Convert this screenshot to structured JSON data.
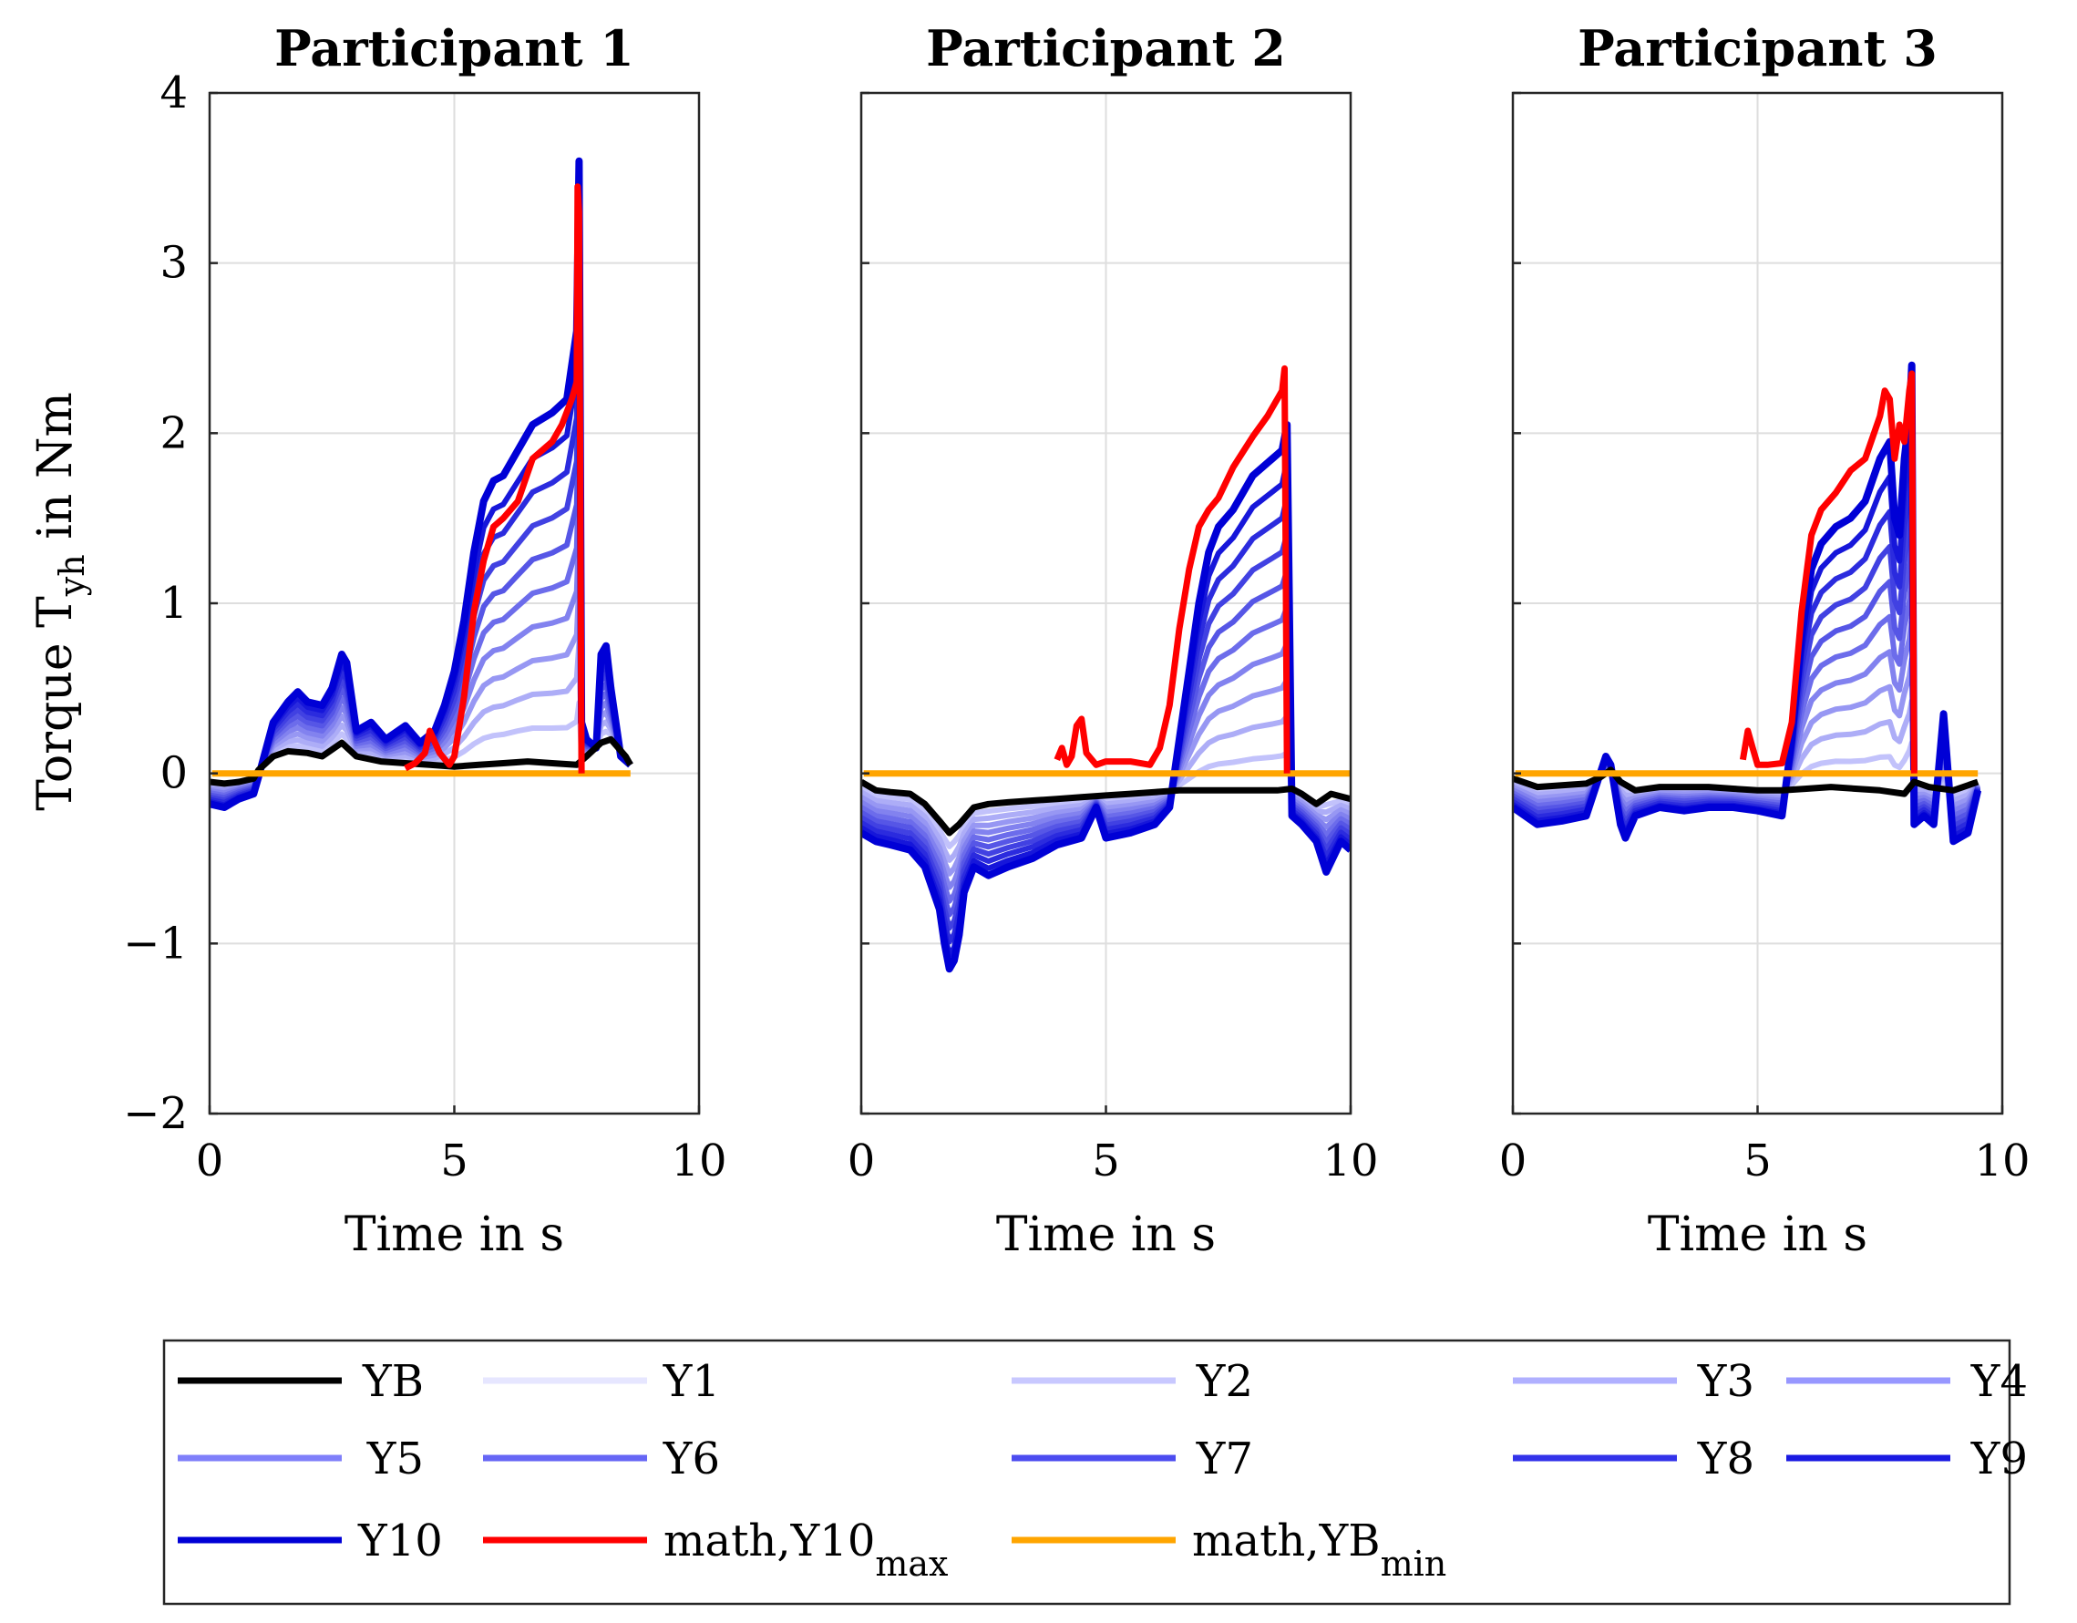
{
  "chart_data": {
    "type": "line",
    "ylabel": {
      "main": "Torque T",
      "sub": "yh",
      "tail": " in Nm"
    },
    "xlabel": "Time in s",
    "xlim": [
      0,
      10
    ],
    "ylim": [
      -2,
      4
    ],
    "xticks": [
      0,
      5,
      10
    ],
    "yticks": [
      -2,
      -1,
      0,
      1,
      2,
      3,
      4
    ],
    "xtick_labels": [
      "0",
      "5",
      "10"
    ],
    "ytick_labels": [
      "−2",
      "−1",
      "0",
      "1",
      "2",
      "3",
      "4"
    ],
    "grid": true,
    "colors": {
      "YB": "#000000",
      "blue_light": "#d8d8ff",
      "blue_dark": "#0000d6",
      "math_max": "#ff0000",
      "math_min": "#ffa500",
      "grid": "#dedede"
    },
    "legend": [
      {
        "key": "YB",
        "label": "YB",
        "sub": "",
        "color": "#000000"
      },
      {
        "key": "Y1",
        "label": "Y1",
        "sub": "",
        "color": "#e6e6ff"
      },
      {
        "key": "Y2",
        "label": "Y2",
        "sub": "",
        "color": "#c8c8ff"
      },
      {
        "key": "Y3",
        "label": "Y3",
        "sub": "",
        "color": "#b0b0ff"
      },
      {
        "key": "Y4",
        "label": "Y4",
        "sub": "",
        "color": "#9797ff"
      },
      {
        "key": "Y5",
        "label": "Y5",
        "sub": "",
        "color": "#7f7ffa"
      },
      {
        "key": "Y6",
        "label": "Y6",
        "sub": "",
        "color": "#6666f5"
      },
      {
        "key": "Y7",
        "label": "Y7",
        "sub": "",
        "color": "#4c4cf0"
      },
      {
        "key": "Y8",
        "label": "Y8",
        "sub": "",
        "color": "#3333ea"
      },
      {
        "key": "Y9",
        "label": "Y9",
        "sub": "",
        "color": "#1a1ae2"
      },
      {
        "key": "Y10",
        "label": "Y10",
        "sub": "",
        "color": "#0000d6"
      },
      {
        "key": "Ymax",
        "label": "math,Y10",
        "sub": "max",
        "color": "#ff0000"
      },
      {
        "key": "Ymin",
        "label": "math,YB",
        "sub": "min",
        "color": "#ffa500"
      }
    ],
    "panels": [
      {
        "title": "Participant 1",
        "YB": {
          "x": [
            0,
            0.3,
            0.6,
            0.9,
            1.0,
            1.3,
            1.6,
            2.0,
            2.3,
            2.7,
            3.0,
            3.5,
            4.0,
            4.5,
            5.0,
            5.5,
            6.0,
            6.5,
            7.0,
            7.5,
            7.7,
            8.0,
            8.2,
            8.5,
            8.6
          ],
          "y": [
            -0.05,
            -0.06,
            -0.05,
            -0.03,
            0.02,
            0.1,
            0.13,
            0.12,
            0.1,
            0.18,
            0.1,
            0.07,
            0.06,
            0.05,
            0.04,
            0.05,
            0.06,
            0.07,
            0.06,
            0.05,
            0.1,
            0.18,
            0.2,
            0.1,
            0.05
          ]
        },
        "Y10": {
          "x": [
            0,
            0.3,
            0.6,
            0.9,
            1.0,
            1.3,
            1.6,
            1.8,
            2.0,
            2.3,
            2.5,
            2.7,
            2.8,
            3.0,
            3.3,
            3.6,
            4.0,
            4.3,
            4.6,
            4.8,
            5.0,
            5.2,
            5.4,
            5.6,
            5.8,
            6.0,
            6.3,
            6.6,
            7.0,
            7.3,
            7.5,
            7.55,
            7.6,
            7.7,
            7.9,
            8.0,
            8.1,
            8.2,
            8.4,
            8.6
          ],
          "y": [
            -0.18,
            -0.2,
            -0.15,
            -0.12,
            -0.02,
            0.3,
            0.42,
            0.48,
            0.42,
            0.4,
            0.5,
            0.7,
            0.65,
            0.25,
            0.3,
            0.2,
            0.28,
            0.18,
            0.25,
            0.4,
            0.6,
            0.9,
            1.3,
            1.6,
            1.72,
            1.75,
            1.9,
            2.05,
            2.12,
            2.2,
            2.6,
            3.6,
            0.3,
            0.2,
            0.15,
            0.7,
            0.75,
            0.5,
            0.1,
            0.05
          ]
        },
        "math_max": {
          "x": [
            4.0,
            4.2,
            4.4,
            4.5,
            4.7,
            4.9,
            5.0,
            5.2,
            5.4,
            5.6,
            5.8,
            6.0,
            6.3,
            6.6,
            7.0,
            7.2,
            7.4,
            7.5,
            7.52,
            7.55,
            7.6
          ],
          "y": [
            0.03,
            0.06,
            0.12,
            0.25,
            0.12,
            0.05,
            0.1,
            0.45,
            0.95,
            1.25,
            1.45,
            1.5,
            1.6,
            1.85,
            1.95,
            2.05,
            2.2,
            2.3,
            3.45,
            3.3,
            0.0
          ]
        },
        "math_min": {
          "x": [
            0.05,
            8.6
          ],
          "y": [
            0,
            0
          ]
        }
      },
      {
        "title": "Participant 2",
        "YB": {
          "x": [
            0,
            0.3,
            0.6,
            1.0,
            1.3,
            1.6,
            1.8,
            2.0,
            2.3,
            2.6,
            3.0,
            3.5,
            4.0,
            4.5,
            5.0,
            5.5,
            6.0,
            6.5,
            7.0,
            7.5,
            8.0,
            8.5,
            8.8,
            9.0,
            9.3,
            9.6,
            10.0
          ],
          "y": [
            -0.05,
            -0.1,
            -0.11,
            -0.12,
            -0.18,
            -0.28,
            -0.35,
            -0.3,
            -0.2,
            -0.18,
            -0.17,
            -0.16,
            -0.15,
            -0.14,
            -0.13,
            -0.12,
            -0.11,
            -0.1,
            -0.1,
            -0.1,
            -0.1,
            -0.1,
            -0.09,
            -0.12,
            -0.18,
            -0.12,
            -0.15
          ]
        },
        "Y10": {
          "x": [
            0,
            0.3,
            0.6,
            1.0,
            1.3,
            1.6,
            1.7,
            1.8,
            1.9,
            2.0,
            2.1,
            2.3,
            2.6,
            3.0,
            3.5,
            4.0,
            4.5,
            4.8,
            5.0,
            5.5,
            6.0,
            6.3,
            6.5,
            6.7,
            6.9,
            7.1,
            7.3,
            7.6,
            8.0,
            8.4,
            8.6,
            8.7,
            8.8,
            9.0,
            9.3,
            9.5,
            9.8,
            10.0
          ],
          "y": [
            -0.35,
            -0.4,
            -0.42,
            -0.45,
            -0.55,
            -0.8,
            -1.0,
            -1.15,
            -1.1,
            -0.95,
            -0.7,
            -0.55,
            -0.6,
            -0.55,
            -0.5,
            -0.42,
            -0.38,
            -0.2,
            -0.38,
            -0.35,
            -0.3,
            -0.2,
            0.2,
            0.6,
            1.0,
            1.3,
            1.45,
            1.55,
            1.75,
            1.85,
            1.9,
            2.05,
            -0.25,
            -0.3,
            -0.4,
            -0.58,
            -0.4,
            -0.45
          ]
        },
        "math_max": {
          "x": [
            4.0,
            4.1,
            4.2,
            4.3,
            4.4,
            4.5,
            4.6,
            4.8,
            5.0,
            5.5,
            5.9,
            6.1,
            6.3,
            6.5,
            6.7,
            6.9,
            7.1,
            7.3,
            7.6,
            8.0,
            8.3,
            8.5,
            8.6,
            8.65,
            8.7
          ],
          "y": [
            0.08,
            0.15,
            0.05,
            0.1,
            0.28,
            0.32,
            0.12,
            0.05,
            0.07,
            0.07,
            0.05,
            0.15,
            0.4,
            0.85,
            1.2,
            1.45,
            1.55,
            1.62,
            1.8,
            1.98,
            2.1,
            2.2,
            2.25,
            2.38,
            0.0
          ]
        },
        "math_min": {
          "x": [
            0.05,
            10.0
          ],
          "y": [
            0,
            0
          ]
        }
      },
      {
        "title": "Participant 3",
        "YB": {
          "x": [
            0,
            0.5,
            1.0,
            1.5,
            1.8,
            2.0,
            2.2,
            2.5,
            3.0,
            3.5,
            4.0,
            4.5,
            5.0,
            5.5,
            6.0,
            6.5,
            7.0,
            7.5,
            8.0,
            8.2,
            8.5,
            9.0,
            9.5
          ],
          "y": [
            -0.03,
            -0.08,
            -0.07,
            -0.06,
            -0.02,
            0.02,
            -0.05,
            -0.1,
            -0.08,
            -0.08,
            -0.08,
            -0.09,
            -0.1,
            -0.1,
            -0.09,
            -0.08,
            -0.09,
            -0.1,
            -0.12,
            -0.05,
            -0.08,
            -0.1,
            -0.05
          ]
        },
        "Y10": {
          "x": [
            0,
            0.5,
            1.0,
            1.5,
            1.9,
            2.0,
            2.2,
            2.3,
            2.5,
            3.0,
            3.5,
            4.0,
            4.5,
            5.0,
            5.5,
            5.7,
            5.9,
            6.1,
            6.3,
            6.6,
            6.9,
            7.2,
            7.5,
            7.7,
            7.8,
            7.9,
            8.0,
            8.1,
            8.15,
            8.2,
            8.4,
            8.6,
            8.8,
            9.0,
            9.3,
            9.5
          ],
          "y": [
            -0.2,
            -0.3,
            -0.28,
            -0.25,
            0.1,
            0.05,
            -0.3,
            -0.38,
            -0.25,
            -0.2,
            -0.22,
            -0.2,
            -0.2,
            -0.22,
            -0.25,
            0.2,
            0.8,
            1.2,
            1.35,
            1.45,
            1.5,
            1.6,
            1.85,
            1.95,
            1.5,
            1.4,
            1.85,
            2.1,
            2.4,
            -0.3,
            -0.25,
            -0.3,
            0.35,
            -0.4,
            -0.35,
            -0.1
          ]
        },
        "math_max": {
          "x": [
            4.7,
            4.8,
            4.9,
            5.0,
            5.2,
            5.5,
            5.7,
            5.9,
            6.1,
            6.3,
            6.6,
            6.9,
            7.2,
            7.5,
            7.6,
            7.7,
            7.8,
            7.9,
            8.0,
            8.1,
            8.15,
            8.2
          ],
          "y": [
            0.08,
            0.25,
            0.15,
            0.05,
            0.05,
            0.06,
            0.3,
            0.95,
            1.4,
            1.55,
            1.65,
            1.78,
            1.85,
            2.1,
            2.25,
            2.2,
            1.85,
            2.05,
            1.95,
            2.25,
            2.35,
            0.0
          ]
        },
        "math_min": {
          "x": [
            0.05,
            9.5
          ],
          "y": [
            0,
            0
          ]
        }
      }
    ]
  }
}
